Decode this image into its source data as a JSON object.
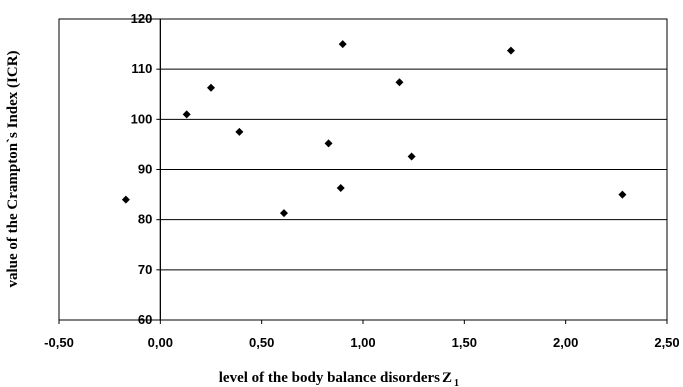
{
  "chart_data": {
    "type": "scatter",
    "xlabel": "level of the body balance disorders",
    "xlabel_symbol": "Z",
    "xlabel_subscript": "1",
    "ylabel": "value of the Crampton`s Index (ICR)",
    "xlim": [
      -0.5,
      2.5
    ],
    "ylim": [
      60,
      120
    ],
    "xticks": [
      "-0,50",
      "0,00",
      "0,50",
      "1,00",
      "1,50",
      "2,00",
      "2,50"
    ],
    "yticks": [
      "60",
      "70",
      "80",
      "90",
      "100",
      "110",
      "120"
    ],
    "xtick_values": [
      -0.5,
      0,
      0.5,
      1.0,
      1.5,
      2.0,
      2.5
    ],
    "ytick_values": [
      60,
      70,
      80,
      90,
      100,
      110,
      120
    ],
    "grid": "horizontal",
    "marker": "diamond",
    "marker_color": "#000000",
    "points": [
      {
        "x": -0.17,
        "y": 84
      },
      {
        "x": 0.13,
        "y": 101
      },
      {
        "x": 0.25,
        "y": 106.3
      },
      {
        "x": 0.39,
        "y": 97.5
      },
      {
        "x": 0.61,
        "y": 81.3
      },
      {
        "x": 0.83,
        "y": 95.2
      },
      {
        "x": 0.89,
        "y": 86.3
      },
      {
        "x": 0.9,
        "y": 115
      },
      {
        "x": 1.18,
        "y": 107.4
      },
      {
        "x": 1.24,
        "y": 92.6
      },
      {
        "x": 1.73,
        "y": 113.7
      },
      {
        "x": 2.28,
        "y": 85
      }
    ]
  }
}
